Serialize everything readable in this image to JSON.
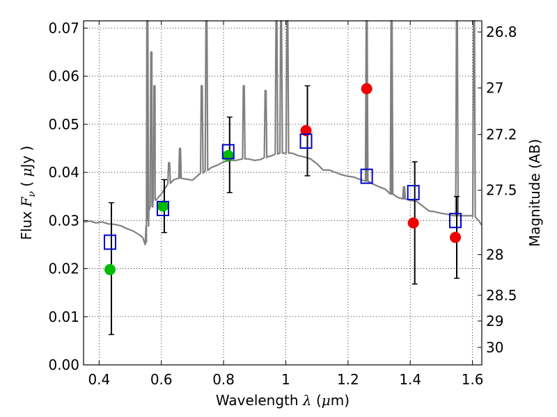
{
  "chart_data": {
    "type": "scatter",
    "xlabel": "Wavelength  λ (μm)",
    "ylabel": "Flux  F_ν  ( μJy )",
    "ylabel_right": "Magnitude (AB)",
    "xlim": [
      0.35,
      1.63
    ],
    "ylim": [
      0.0,
      0.0715
    ],
    "grid": true,
    "x_ticks": [
      0.4,
      0.6,
      0.8,
      1.0,
      1.2,
      1.4,
      1.6
    ],
    "x_tick_labels": [
      "0.4",
      "0.6",
      "0.8",
      "1",
      "1.2",
      "1.4",
      "1.6"
    ],
    "y_ticks": [
      0.0,
      0.01,
      0.02,
      0.03,
      0.04,
      0.05,
      0.06,
      0.07
    ],
    "y_tick_labels": [
      "0.00",
      "0.01",
      "0.02",
      "0.03",
      "0.04",
      "0.05",
      "0.06",
      "0.07"
    ],
    "mag_ticks": [
      26.8,
      27,
      27.2,
      27.5,
      28,
      28.5,
      29,
      30
    ],
    "mag_tick_labels": [
      "26.8",
      "27",
      "27.2",
      "27.5",
      "28",
      "28.5",
      "29",
      "30"
    ],
    "colors": {
      "model": "#808080",
      "green": "#00bb00",
      "red": "#ee0000",
      "square": "#0000cc",
      "errorbar": "#000000"
    },
    "series": [
      {
        "marker": "circle-green",
        "x": [
          0.435,
          0.605,
          0.815
        ],
        "y": [
          0.0198,
          0.033,
          0.0435
        ],
        "yerr_low": [
          0.0063,
          0.0275,
          0.0358
        ],
        "yerr_high": [
          0.0337,
          0.0385,
          0.0515
        ]
      },
      {
        "marker": "circle-red",
        "x": [
          1.065,
          1.26,
          1.41,
          1.545
        ],
        "y": [
          0.0487,
          0.0574,
          0.0295,
          0.0265
        ],
        "yerr_low": [
          0.0393,
          0.0745,
          0.0168,
          0.018
        ],
        "yerr_high": [
          0.058,
          0.0745,
          0.0422,
          0.035
        ]
      },
      {
        "marker": "square-blue",
        "x": [
          0.435,
          0.605,
          0.815,
          1.065,
          1.26,
          1.41,
          1.545
        ],
        "y": [
          0.0255,
          0.0325,
          0.0443,
          0.0465,
          0.0392,
          0.0358,
          0.03
        ]
      }
    ],
    "model_spectrum": {
      "x": [
        0.35,
        0.37,
        0.39,
        0.41,
        0.43,
        0.45,
        0.47,
        0.49,
        0.51,
        0.53,
        0.54,
        0.548,
        0.552,
        0.556,
        0.56,
        0.57,
        0.58,
        0.6,
        0.62,
        0.64,
        0.66,
        0.68,
        0.7,
        0.72,
        0.74,
        0.76,
        0.78,
        0.8,
        0.82,
        0.84,
        0.86,
        0.88,
        0.9,
        0.92,
        0.94,
        0.96,
        0.98,
        1.0,
        1.02,
        1.04,
        1.06,
        1.08,
        1.1,
        1.12,
        1.14,
        1.16,
        1.18,
        1.2,
        1.22,
        1.24,
        1.26,
        1.28,
        1.3,
        1.32,
        1.34,
        1.36,
        1.38,
        1.4,
        1.42,
        1.44,
        1.46,
        1.48,
        1.5,
        1.52,
        1.54,
        1.56,
        1.58,
        1.6,
        1.62,
        1.63
      ],
      "y": [
        0.0297,
        0.0299,
        0.0295,
        0.0297,
        0.0293,
        0.0292,
        0.0289,
        0.0283,
        0.0278,
        0.027,
        0.0265,
        0.025,
        0.0255,
        0.03,
        0.032,
        0.033,
        0.0345,
        0.0355,
        0.0375,
        0.0385,
        0.0388,
        0.0386,
        0.0384,
        0.0395,
        0.0402,
        0.041,
        0.0415,
        0.0422,
        0.0425,
        0.0425,
        0.0428,
        0.0428,
        0.0425,
        0.0427,
        0.0432,
        0.0436,
        0.044,
        0.044,
        0.044,
        0.0435,
        0.0432,
        0.0428,
        0.0418,
        0.0405,
        0.0405,
        0.04,
        0.0395,
        0.0392,
        0.039,
        0.0385,
        0.0382,
        0.0376,
        0.037,
        0.0365,
        0.0355,
        0.0348,
        0.0345,
        0.0342,
        0.034,
        0.033,
        0.032,
        0.0318,
        0.0315,
        0.0313,
        0.031,
        0.031,
        0.031,
        0.031,
        0.03,
        0.029
      ]
    },
    "emission_lines": [
      {
        "x": 0.555,
        "peak": 0.0715
      },
      {
        "x": 0.568,
        "peak": 0.065
      },
      {
        "x": 0.578,
        "peak": 0.058
      },
      {
        "x": 0.625,
        "peak": 0.042
      },
      {
        "x": 0.66,
        "peak": 0.045
      },
      {
        "x": 0.73,
        "peak": 0.058
      },
      {
        "x": 0.745,
        "peak": 0.0715
      },
      {
        "x": 0.865,
        "peak": 0.058
      },
      {
        "x": 0.935,
        "peak": 0.057
      },
      {
        "x": 0.97,
        "peak": 0.0715
      },
      {
        "x": 0.985,
        "peak": 0.0715
      },
      {
        "x": 1.005,
        "peak": 0.0715
      },
      {
        "x": 1.26,
        "peak": 0.0715
      },
      {
        "x": 1.34,
        "peak": 0.0715
      },
      {
        "x": 1.38,
        "peak": 0.037
      },
      {
        "x": 1.55,
        "peak": 0.0715
      },
      {
        "x": 1.605,
        "peak": 0.0715
      }
    ]
  }
}
